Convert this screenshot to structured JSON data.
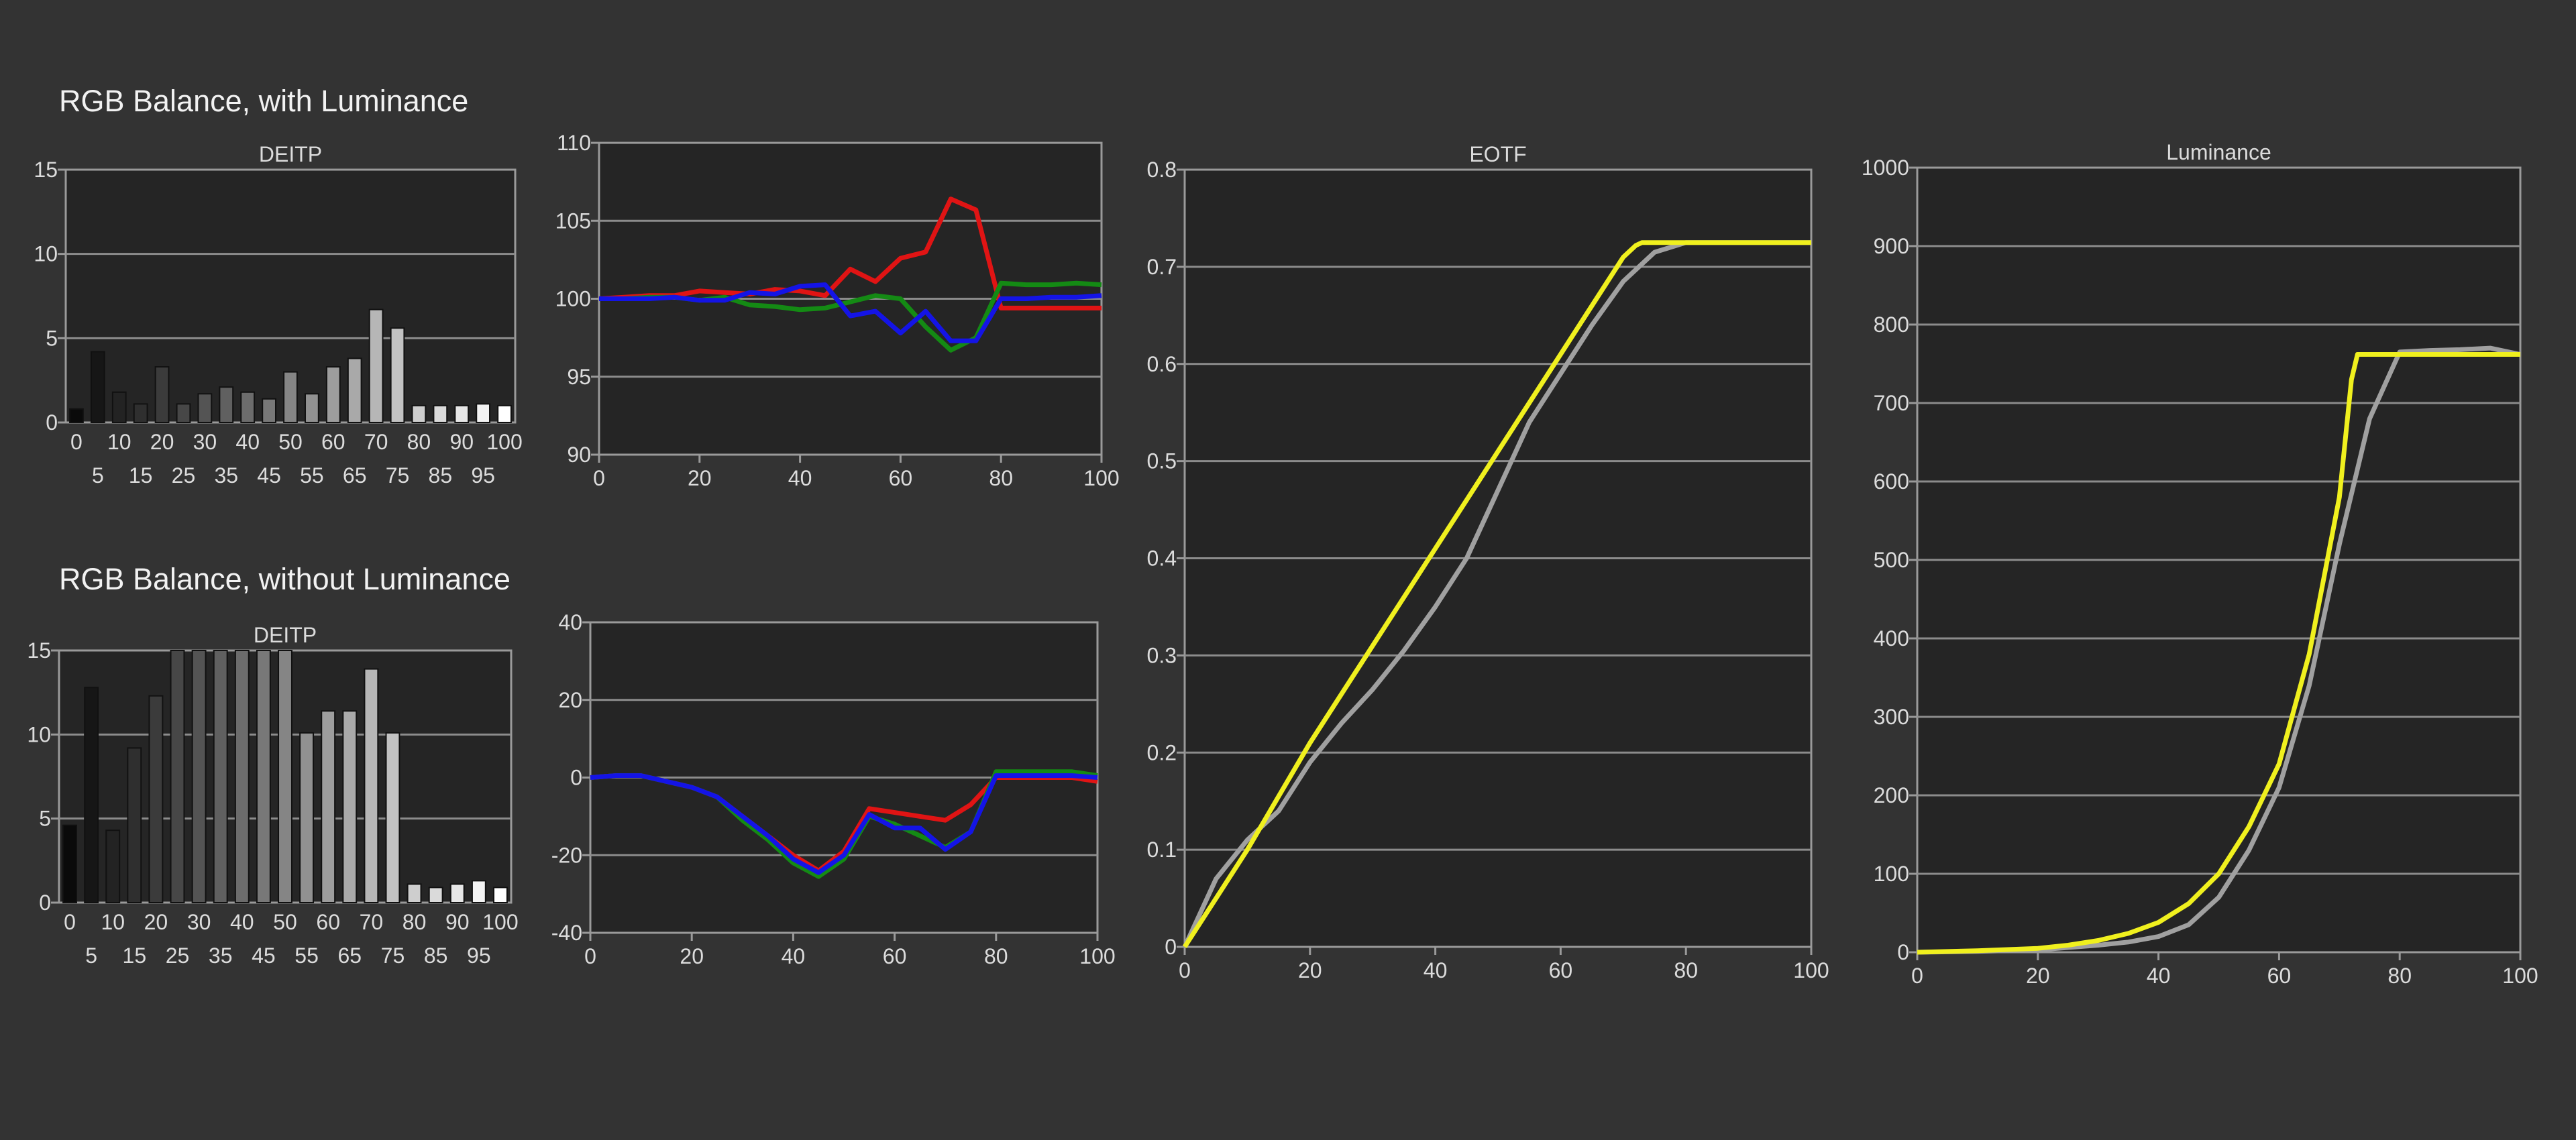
{
  "titles": {
    "with_luminance": "RGB Balance, with Luminance",
    "without_luminance": "RGB Balance, without Luminance"
  },
  "colors": {
    "background": "#333333",
    "plot_bg": "#252525",
    "grid": "#8c8c8c",
    "red": "#e01414",
    "green": "#148a14",
    "blue": "#1414e6",
    "yellow": "#f0f01e",
    "gray": "#a0a0a0"
  },
  "chart_data": [
    {
      "id": "deitp_with",
      "type": "bar",
      "title": "DEITP",
      "ylim": [
        0,
        15
      ],
      "yticks": [
        0,
        5,
        10,
        15
      ],
      "categories": [
        "0",
        "5",
        "10",
        "15",
        "20",
        "25",
        "30",
        "35",
        "40",
        "45",
        "50",
        "55",
        "60",
        "65",
        "70",
        "75",
        "80",
        "85",
        "90",
        "95",
        "100"
      ],
      "values": [
        0.8,
        4.2,
        1.8,
        1.1,
        3.3,
        1.1,
        1.7,
        2.1,
        1.8,
        1.4,
        3.0,
        1.7,
        3.3,
        3.8,
        6.7,
        5.6,
        1.0,
        1.0,
        1.0,
        1.1,
        1.0
      ],
      "grid": true
    },
    {
      "id": "rgb_with",
      "type": "line",
      "ylim": [
        90,
        110
      ],
      "yticks": [
        90,
        95,
        100,
        105,
        110
      ],
      "xlim": [
        0,
        100
      ],
      "xticks": [
        0,
        20,
        40,
        60,
        80,
        100
      ],
      "x": [
        0,
        5,
        10,
        15,
        20,
        25,
        30,
        35,
        40,
        45,
        50,
        55,
        60,
        65,
        70,
        75,
        80,
        85,
        90,
        95,
        100
      ],
      "series": [
        {
          "color": "red",
          "values": [
            100,
            100.1,
            100.2,
            100.2,
            100.5,
            100.4,
            100.3,
            100.6,
            100.5,
            100.2,
            101.9,
            101.1,
            102.6,
            103.0,
            106.4,
            105.7,
            99.4,
            99.4,
            99.4,
            99.4,
            99.4
          ]
        },
        {
          "color": "green",
          "values": [
            100,
            100,
            100.1,
            100.1,
            99.9,
            100.1,
            99.6,
            99.5,
            99.3,
            99.4,
            99.8,
            100.2,
            100.0,
            98.2,
            96.7,
            97.5,
            101.0,
            100.9,
            100.9,
            101.0,
            100.9
          ]
        },
        {
          "color": "blue",
          "values": [
            100,
            100,
            100,
            100.1,
            99.9,
            99.9,
            100.4,
            100.3,
            100.8,
            100.9,
            98.9,
            99.2,
            97.8,
            99.2,
            97.3,
            97.3,
            100.0,
            100.0,
            100.1,
            100.1,
            100.2
          ]
        }
      ],
      "grid": true
    },
    {
      "id": "eotf",
      "type": "line",
      "title": "EOTF",
      "ylim": [
        0,
        0.8
      ],
      "yticks": [
        0,
        0.1,
        0.2,
        0.3,
        0.4,
        0.5,
        0.6,
        0.7,
        0.8
      ],
      "xlim": [
        0,
        100
      ],
      "xticks": [
        0,
        20,
        40,
        60,
        80,
        100
      ],
      "series": [
        {
          "color": "gray",
          "x": [
            0,
            5,
            10,
            15,
            20,
            25,
            30,
            35,
            40,
            45,
            50,
            55,
            60,
            65,
            70,
            75,
            80,
            85,
            90,
            95,
            100
          ],
          "values": [
            0.0,
            0.07,
            0.11,
            0.14,
            0.19,
            0.23,
            0.265,
            0.305,
            0.35,
            0.4,
            0.47,
            0.54,
            0.59,
            0.64,
            0.685,
            0.715,
            0.725,
            0.725,
            0.725,
            0.725,
            0.725
          ]
        },
        {
          "color": "yellow",
          "x": [
            0,
            5,
            10,
            15,
            20,
            25,
            30,
            35,
            40,
            45,
            50,
            55,
            60,
            65,
            70,
            72,
            73,
            75,
            80,
            90,
            100
          ],
          "values": [
            0.0,
            0.05,
            0.1,
            0.155,
            0.21,
            0.26,
            0.31,
            0.36,
            0.41,
            0.46,
            0.51,
            0.56,
            0.61,
            0.66,
            0.71,
            0.722,
            0.725,
            0.725,
            0.725,
            0.725,
            0.725
          ]
        }
      ],
      "grid": true
    },
    {
      "id": "luminance",
      "type": "line",
      "title": "Luminance",
      "ylim": [
        0,
        1000
      ],
      "yticks": [
        0,
        100,
        200,
        300,
        400,
        500,
        600,
        700,
        800,
        900,
        1000
      ],
      "xlim": [
        0,
        100
      ],
      "xticks": [
        0,
        20,
        40,
        60,
        80,
        100
      ],
      "series": [
        {
          "color": "gray",
          "x": [
            0,
            10,
            20,
            25,
            30,
            35,
            40,
            45,
            50,
            55,
            60,
            65,
            70,
            75,
            80,
            85,
            90,
            95,
            100
          ],
          "values": [
            0,
            1,
            3,
            6,
            9,
            13,
            20,
            35,
            70,
            130,
            210,
            340,
            520,
            680,
            765,
            767,
            768,
            770,
            762
          ]
        },
        {
          "color": "yellow",
          "x": [
            0,
            10,
            20,
            25,
            30,
            35,
            40,
            45,
            50,
            55,
            60,
            65,
            70,
            72,
            73,
            75,
            80,
            90,
            100
          ],
          "values": [
            0,
            2,
            5,
            9,
            15,
            24,
            38,
            62,
            100,
            160,
            240,
            380,
            580,
            730,
            762,
            762,
            762,
            762,
            762
          ]
        }
      ],
      "grid": true
    },
    {
      "id": "deitp_without",
      "type": "bar",
      "title": "DEITP",
      "ylim": [
        0,
        15
      ],
      "yticks": [
        0,
        5,
        10,
        15
      ],
      "categories": [
        "0",
        "5",
        "10",
        "15",
        "20",
        "25",
        "30",
        "35",
        "40",
        "45",
        "50",
        "55",
        "60",
        "65",
        "70",
        "75",
        "80",
        "85",
        "90",
        "95",
        "100"
      ],
      "values": [
        4.6,
        12.8,
        4.3,
        9.2,
        12.3,
        15,
        15,
        15,
        15,
        15,
        15,
        10.1,
        11.4,
        11.4,
        13.9,
        10.1,
        1.1,
        0.9,
        1.1,
        1.3,
        0.9
      ],
      "grid": true
    },
    {
      "id": "rgb_without",
      "type": "line",
      "ylim": [
        -40,
        40
      ],
      "yticks": [
        -40,
        -20,
        0,
        20,
        40
      ],
      "xlim": [
        0,
        100
      ],
      "xticks": [
        0,
        20,
        40,
        60,
        80,
        100
      ],
      "x": [
        0,
        5,
        10,
        15,
        20,
        25,
        30,
        35,
        40,
        45,
        50,
        55,
        60,
        65,
        70,
        75,
        80,
        85,
        90,
        95,
        100
      ],
      "series": [
        {
          "color": "red",
          "values": [
            0,
            0.5,
            0.5,
            -1,
            -2.5,
            -5,
            -10,
            -15,
            -20,
            -24,
            -19,
            -8,
            -9,
            -10,
            -11,
            -7,
            0,
            0,
            0,
            0,
            -1
          ]
        },
        {
          "color": "green",
          "values": [
            0,
            0.5,
            0.5,
            -1,
            -2.5,
            -5,
            -11,
            -16,
            -22,
            -25.5,
            -21,
            -10,
            -12,
            -15,
            -18,
            -14,
            1.5,
            1.5,
            1.5,
            1.5,
            0.5
          ]
        },
        {
          "color": "blue",
          "values": [
            0,
            0.5,
            0.5,
            -1,
            -2.5,
            -5,
            -10,
            -15,
            -21,
            -24.5,
            -20,
            -9.5,
            -13,
            -13,
            -18.5,
            -14,
            0.5,
            0.5,
            0.5,
            0.5,
            0
          ]
        }
      ],
      "grid": true
    }
  ]
}
